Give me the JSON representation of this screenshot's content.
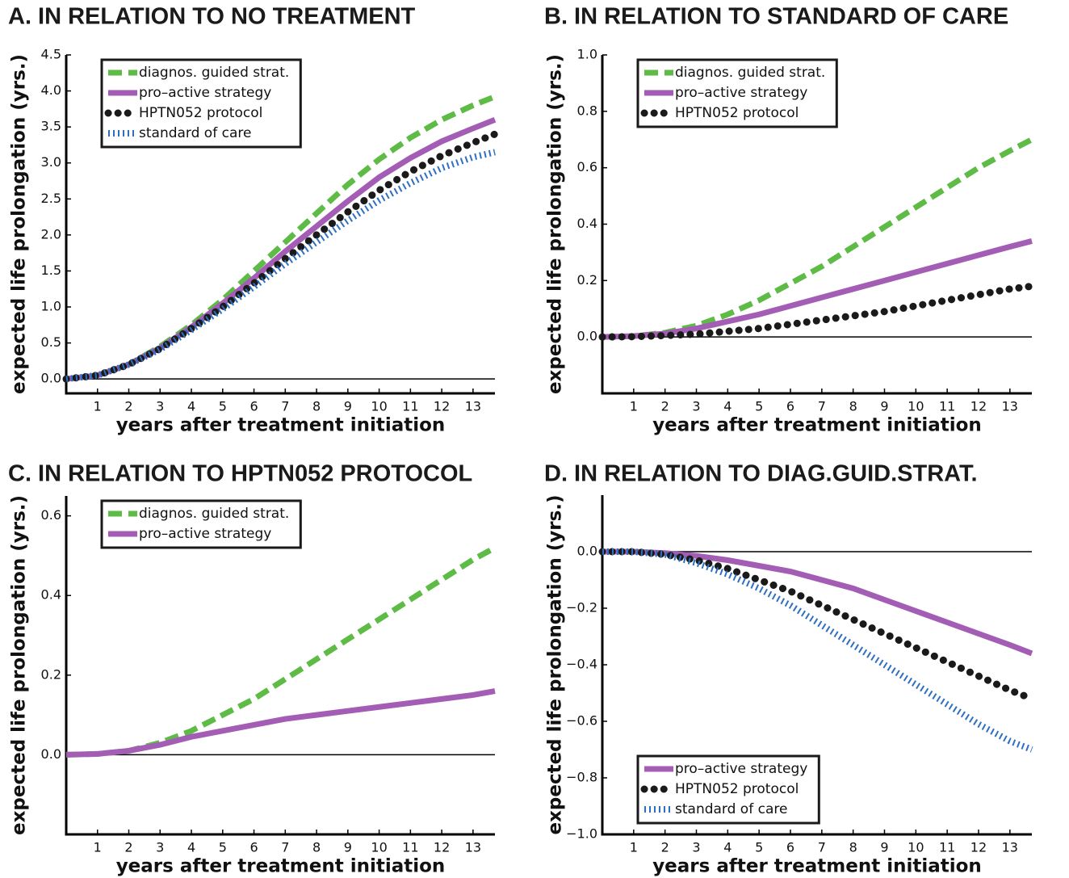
{
  "chart_data": [
    {
      "type": "line",
      "title": "A. IN RELATION TO NO TREATMENT",
      "xlabel": "years after treatment initiation",
      "ylabel": "expected life prolongation (yrs.)",
      "x": [
        0,
        1,
        2,
        3,
        4,
        5,
        6,
        7,
        8,
        9,
        10,
        11,
        12,
        13,
        13.7
      ],
      "xlim": [
        0,
        13.7
      ],
      "xticks": [
        1,
        2,
        3,
        4,
        5,
        6,
        7,
        8,
        9,
        10,
        11,
        12,
        13
      ],
      "ylim": [
        -0.2,
        4.5
      ],
      "yticks": [
        {
          "value": 0,
          "label": "0.0"
        },
        0.5,
        {
          "value": 1,
          "label": "1.0"
        },
        1.5,
        {
          "value": 2,
          "label": "2.0"
        },
        2.5,
        {
          "value": 3,
          "label": "3.0"
        },
        3.5,
        {
          "value": 4,
          "label": "4.0"
        },
        4.5
      ],
      "legend": "upper left",
      "zero_line": true,
      "series": [
        {
          "name": "diagnos. guided strat.",
          "color": "#5dbb46",
          "style": "dashed",
          "values": [
            0,
            0.05,
            0.2,
            0.45,
            0.75,
            1.1,
            1.5,
            1.9,
            2.3,
            2.7,
            3.05,
            3.35,
            3.6,
            3.8,
            3.92
          ]
        },
        {
          "name": "pro–active strategy",
          "color": "#a35db5",
          "style": "solid",
          "values": [
            0,
            0.05,
            0.2,
            0.43,
            0.72,
            1.05,
            1.4,
            1.77,
            2.12,
            2.47,
            2.8,
            3.07,
            3.3,
            3.48,
            3.6
          ]
        },
        {
          "name": "HPTN052 protocol",
          "color": "#1a1a1a",
          "style": "dotted",
          "values": [
            0,
            0.05,
            0.2,
            0.42,
            0.7,
            1.0,
            1.33,
            1.67,
            2.0,
            2.32,
            2.62,
            2.88,
            3.1,
            3.28,
            3.4
          ]
        },
        {
          "name": "standard of care",
          "color": "#2f6fc0",
          "style": "ticks",
          "values": [
            0,
            0.05,
            0.2,
            0.41,
            0.68,
            0.97,
            1.28,
            1.6,
            1.9,
            2.2,
            2.48,
            2.72,
            2.93,
            3.08,
            3.15
          ]
        }
      ]
    },
    {
      "type": "line",
      "title": "B. IN RELATION TO STANDARD OF CARE",
      "xlabel": "years after treatment initiation",
      "ylabel": "expected life prolongation (yrs.)",
      "x": [
        0,
        1,
        2,
        3,
        4,
        5,
        6,
        7,
        8,
        9,
        10,
        11,
        12,
        13,
        13.7
      ],
      "xlim": [
        0,
        13.7
      ],
      "xticks": [
        1,
        2,
        3,
        4,
        5,
        6,
        7,
        8,
        9,
        10,
        11,
        12,
        13
      ],
      "ylim": [
        -0.2,
        1.0
      ],
      "yticks": [
        {
          "value": 0,
          "label": "0.0"
        },
        0.2,
        0.4,
        0.6,
        0.8,
        {
          "value": 1,
          "label": "1.0"
        }
      ],
      "legend": "upper left",
      "zero_line": true,
      "series": [
        {
          "name": "diagnos. guided strat.",
          "color": "#5dbb46",
          "style": "dashed",
          "values": [
            0,
            0.003,
            0.015,
            0.04,
            0.08,
            0.13,
            0.19,
            0.25,
            0.32,
            0.39,
            0.46,
            0.53,
            0.6,
            0.66,
            0.7
          ]
        },
        {
          "name": "pro–active strategy",
          "color": "#a35db5",
          "style": "solid",
          "values": [
            0,
            0.003,
            0.012,
            0.03,
            0.055,
            0.08,
            0.11,
            0.14,
            0.17,
            0.2,
            0.23,
            0.26,
            0.29,
            0.32,
            0.34
          ]
        },
        {
          "name": "HPTN052 protocol",
          "color": "#1a1a1a",
          "style": "dotted",
          "values": [
            0,
            0.001,
            0.005,
            0.01,
            0.02,
            0.03,
            0.045,
            0.06,
            0.075,
            0.09,
            0.11,
            0.13,
            0.15,
            0.17,
            0.18
          ]
        }
      ]
    },
    {
      "type": "line",
      "title": "C. IN RELATION TO HPTN052 PROTOCOL",
      "xlabel": "years after treatment initiation",
      "ylabel": "expected life prolongation (yrs.)",
      "x": [
        0,
        1,
        2,
        3,
        4,
        5,
        6,
        7,
        8,
        9,
        10,
        11,
        12,
        13,
        13.7
      ],
      "xlim": [
        0,
        13.7
      ],
      "xticks": [
        1,
        2,
        3,
        4,
        5,
        6,
        7,
        8,
        9,
        10,
        11,
        12,
        13
      ],
      "ylim": [
        -0.2,
        0.65
      ],
      "yticks": [
        {
          "value": 0,
          "label": "0.0"
        },
        0.2,
        0.4,
        0.6
      ],
      "legend": "upper left",
      "zero_line": true,
      "series": [
        {
          "name": "diagnos. guided strat.",
          "color": "#5dbb46",
          "style": "dashed",
          "values": [
            0,
            0.002,
            0.01,
            0.03,
            0.06,
            0.1,
            0.14,
            0.19,
            0.24,
            0.29,
            0.34,
            0.39,
            0.44,
            0.49,
            0.52
          ]
        },
        {
          "name": "pro–active strategy",
          "color": "#a35db5",
          "style": "solid",
          "values": [
            0,
            0.002,
            0.01,
            0.025,
            0.045,
            0.06,
            0.075,
            0.09,
            0.1,
            0.11,
            0.12,
            0.13,
            0.14,
            0.15,
            0.16
          ]
        }
      ]
    },
    {
      "type": "line",
      "title": "D. IN RELATION TO DIAG.GUID.STRAT.",
      "xlabel": "years after treatment initiation",
      "ylabel": "expected life prolongation (yrs.)",
      "x": [
        0,
        1,
        2,
        3,
        4,
        5,
        6,
        7,
        8,
        9,
        10,
        11,
        12,
        13,
        13.7
      ],
      "xlim": [
        0,
        13.7
      ],
      "xticks": [
        1,
        2,
        3,
        4,
        5,
        6,
        7,
        8,
        9,
        10,
        11,
        12,
        13
      ],
      "ylim": [
        -1.0,
        0.2
      ],
      "yticks": [
        {
          "value": 0,
          "label": "0.0"
        },
        {
          "value": -0.2,
          "label": "−0.2"
        },
        {
          "value": -0.4,
          "label": "−0.4"
        },
        {
          "value": -0.6,
          "label": "−0.6"
        },
        {
          "value": -0.8,
          "label": "−0.8"
        },
        {
          "value": -1.0,
          "label": "−1.0"
        }
      ],
      "legend": "lower left",
      "zero_line": true,
      "series": [
        {
          "name": "pro–active strategy",
          "color": "#a35db5",
          "style": "solid",
          "values": [
            0,
            0,
            -0.005,
            -0.015,
            -0.03,
            -0.05,
            -0.07,
            -0.1,
            -0.13,
            -0.17,
            -0.21,
            -0.25,
            -0.29,
            -0.33,
            -0.36
          ]
        },
        {
          "name": "HPTN052 protocol",
          "color": "#1a1a1a",
          "style": "dotted",
          "values": [
            0,
            0,
            -0.01,
            -0.03,
            -0.06,
            -0.1,
            -0.14,
            -0.19,
            -0.24,
            -0.29,
            -0.34,
            -0.39,
            -0.44,
            -0.49,
            -0.52
          ]
        },
        {
          "name": "standard of care",
          "color": "#2f6fc0",
          "style": "ticks",
          "values": [
            0,
            0,
            -0.01,
            -0.04,
            -0.08,
            -0.13,
            -0.19,
            -0.26,
            -0.33,
            -0.4,
            -0.47,
            -0.54,
            -0.61,
            -0.67,
            -0.7
          ]
        }
      ]
    }
  ]
}
